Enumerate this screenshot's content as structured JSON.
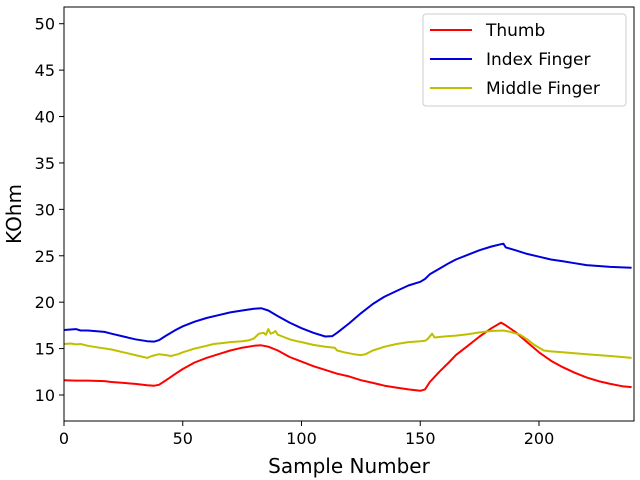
{
  "chart_data": {
    "type": "line",
    "title": "",
    "xlabel": "Sample Number",
    "ylabel": "KOhm",
    "xlim": [
      0,
      240
    ],
    "ylim": [
      7.2,
      51.8
    ],
    "xticks": [
      0,
      50,
      100,
      150,
      200
    ],
    "yticks": [
      10,
      15,
      20,
      25,
      30,
      35,
      40,
      45,
      50
    ],
    "grid": false,
    "legend_position": "top-right",
    "series": [
      {
        "name": "Thumb",
        "color": "#ff0000",
        "points": [
          [
            0,
            11.6
          ],
          [
            5,
            11.55
          ],
          [
            10,
            11.55
          ],
          [
            17,
            11.5
          ],
          [
            20,
            11.4
          ],
          [
            25,
            11.3
          ],
          [
            30,
            11.2
          ],
          [
            35,
            11.05
          ],
          [
            38,
            11.0
          ],
          [
            40,
            11.1
          ],
          [
            43,
            11.6
          ],
          [
            47,
            12.3
          ],
          [
            50,
            12.8
          ],
          [
            55,
            13.5
          ],
          [
            60,
            14.0
          ],
          [
            65,
            14.4
          ],
          [
            70,
            14.8
          ],
          [
            75,
            15.1
          ],
          [
            80,
            15.3
          ],
          [
            83,
            15.35
          ],
          [
            86,
            15.2
          ],
          [
            90,
            14.8
          ],
          [
            95,
            14.1
          ],
          [
            100,
            13.6
          ],
          [
            105,
            13.1
          ],
          [
            110,
            12.7
          ],
          [
            115,
            12.3
          ],
          [
            120,
            12.0
          ],
          [
            125,
            11.6
          ],
          [
            130,
            11.3
          ],
          [
            135,
            11.0
          ],
          [
            140,
            10.8
          ],
          [
            145,
            10.6
          ],
          [
            150,
            10.45
          ],
          [
            152,
            10.6
          ],
          [
            154,
            11.4
          ],
          [
            158,
            12.5
          ],
          [
            162,
            13.5
          ],
          [
            165,
            14.3
          ],
          [
            170,
            15.3
          ],
          [
            175,
            16.3
          ],
          [
            180,
            17.2
          ],
          [
            184,
            17.8
          ],
          [
            186,
            17.5
          ],
          [
            190,
            16.8
          ],
          [
            195,
            15.7
          ],
          [
            200,
            14.6
          ],
          [
            205,
            13.7
          ],
          [
            210,
            13.0
          ],
          [
            215,
            12.4
          ],
          [
            220,
            11.9
          ],
          [
            225,
            11.5
          ],
          [
            230,
            11.2
          ],
          [
            235,
            10.95
          ],
          [
            239,
            10.85
          ]
        ]
      },
      {
        "name": "Index Finger",
        "color": "#0000dd",
        "points": [
          [
            0,
            17.0
          ],
          [
            5,
            17.1
          ],
          [
            7,
            16.95
          ],
          [
            10,
            16.95
          ],
          [
            17,
            16.8
          ],
          [
            20,
            16.6
          ],
          [
            25,
            16.3
          ],
          [
            30,
            16.0
          ],
          [
            35,
            15.8
          ],
          [
            38,
            15.75
          ],
          [
            40,
            15.9
          ],
          [
            43,
            16.4
          ],
          [
            47,
            17.0
          ],
          [
            50,
            17.4
          ],
          [
            55,
            17.9
          ],
          [
            60,
            18.3
          ],
          [
            65,
            18.6
          ],
          [
            70,
            18.9
          ],
          [
            75,
            19.1
          ],
          [
            80,
            19.3
          ],
          [
            83,
            19.35
          ],
          [
            86,
            19.1
          ],
          [
            90,
            18.5
          ],
          [
            95,
            17.8
          ],
          [
            100,
            17.2
          ],
          [
            105,
            16.7
          ],
          [
            110,
            16.3
          ],
          [
            113,
            16.35
          ],
          [
            115,
            16.7
          ],
          [
            120,
            17.7
          ],
          [
            125,
            18.8
          ],
          [
            130,
            19.8
          ],
          [
            135,
            20.6
          ],
          [
            140,
            21.2
          ],
          [
            145,
            21.8
          ],
          [
            150,
            22.2
          ],
          [
            152,
            22.5
          ],
          [
            154,
            23.0
          ],
          [
            158,
            23.6
          ],
          [
            162,
            24.2
          ],
          [
            165,
            24.6
          ],
          [
            170,
            25.1
          ],
          [
            175,
            25.6
          ],
          [
            180,
            26.0
          ],
          [
            184,
            26.25
          ],
          [
            185,
            26.3
          ],
          [
            186,
            25.9
          ],
          [
            190,
            25.6
          ],
          [
            195,
            25.2
          ],
          [
            200,
            24.9
          ],
          [
            205,
            24.6
          ],
          [
            210,
            24.4
          ],
          [
            215,
            24.2
          ],
          [
            220,
            24.0
          ],
          [
            225,
            23.9
          ],
          [
            230,
            23.8
          ],
          [
            235,
            23.75
          ],
          [
            239,
            23.7
          ]
        ]
      },
      {
        "name": "Middle Finger",
        "color": "#bfbf00",
        "points": [
          [
            0,
            15.5
          ],
          [
            3,
            15.55
          ],
          [
            5,
            15.45
          ],
          [
            7,
            15.5
          ],
          [
            10,
            15.3
          ],
          [
            15,
            15.1
          ],
          [
            20,
            14.9
          ],
          [
            25,
            14.6
          ],
          [
            30,
            14.3
          ],
          [
            35,
            14.0
          ],
          [
            37,
            14.2
          ],
          [
            40,
            14.4
          ],
          [
            43,
            14.3
          ],
          [
            45,
            14.2
          ],
          [
            48,
            14.4
          ],
          [
            50,
            14.6
          ],
          [
            55,
            15.0
          ],
          [
            60,
            15.3
          ],
          [
            63,
            15.5
          ],
          [
            67,
            15.6
          ],
          [
            70,
            15.7
          ],
          [
            75,
            15.8
          ],
          [
            78,
            15.9
          ],
          [
            80,
            16.1
          ],
          [
            82,
            16.6
          ],
          [
            84,
            16.7
          ],
          [
            85,
            16.5
          ],
          [
            86,
            17.1
          ],
          [
            87,
            16.6
          ],
          [
            88,
            16.7
          ],
          [
            89,
            16.9
          ],
          [
            90,
            16.5
          ],
          [
            92,
            16.3
          ],
          [
            95,
            16.0
          ],
          [
            98,
            15.8
          ],
          [
            100,
            15.7
          ],
          [
            105,
            15.4
          ],
          [
            110,
            15.2
          ],
          [
            114,
            15.1
          ],
          [
            115,
            14.8
          ],
          [
            118,
            14.6
          ],
          [
            122,
            14.4
          ],
          [
            125,
            14.3
          ],
          [
            127,
            14.4
          ],
          [
            130,
            14.8
          ],
          [
            135,
            15.2
          ],
          [
            140,
            15.5
          ],
          [
            145,
            15.7
          ],
          [
            150,
            15.8
          ],
          [
            152,
            15.85
          ],
          [
            153,
            16.0
          ],
          [
            155,
            16.6
          ],
          [
            156,
            16.2
          ],
          [
            160,
            16.3
          ],
          [
            165,
            16.4
          ],
          [
            170,
            16.55
          ],
          [
            175,
            16.75
          ],
          [
            180,
            16.9
          ],
          [
            185,
            16.95
          ],
          [
            188,
            16.8
          ],
          [
            192,
            16.5
          ],
          [
            195,
            16.0
          ],
          [
            198,
            15.4
          ],
          [
            202,
            14.8
          ],
          [
            205,
            14.7
          ],
          [
            210,
            14.6
          ],
          [
            215,
            14.5
          ],
          [
            220,
            14.4
          ],
          [
            225,
            14.3
          ],
          [
            230,
            14.2
          ],
          [
            235,
            14.1
          ],
          [
            239,
            14.0
          ]
        ]
      }
    ]
  }
}
